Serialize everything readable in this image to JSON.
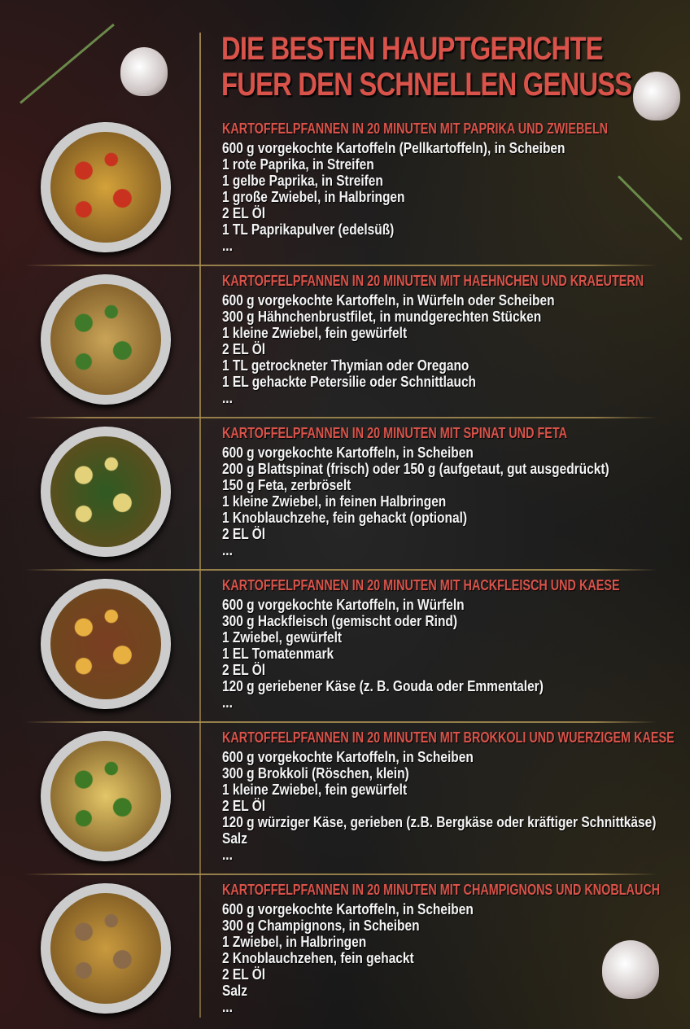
{
  "title_lines": [
    "DIE BESTEN HAUPTGERICHTE",
    "FUER DEN SCHNELLEN GENUSS"
  ],
  "colors": {
    "accent": "#d9534a",
    "divider": "#a88f52",
    "background": "#1b1b1b"
  },
  "recipes": [
    {
      "title": "KARTOFFELPFANNEN IN 20 MINUTEN MIT PAPRIKA UND ZWIEBELN",
      "food_color": "#d4a23a",
      "accent_color": "#c8321e",
      "items": [
        "600 g vorgekochte Kartoffeln (Pellkartoffeln), in Scheiben",
        "1 rote Paprika, in Streifen",
        "1 gelbe Paprika, in Streifen",
        "1 große Zwiebel, in Halbringen",
        "2 EL Öl",
        "1 TL Paprikapulver (edelsüß)",
        "..."
      ]
    },
    {
      "title": "KARTOFFELPFANNEN IN 20 MINUTEN MIT HAEHNCHEN UND KRAEUTERN",
      "food_color": "#c9a457",
      "accent_color": "#3f7a2a",
      "items": [
        "600 g vorgekochte Kartoffeln, in Würfeln oder Scheiben",
        "300 g Hähnchenbrustfilet, in mundgerechten Stücken",
        "1 kleine Zwiebel, fein gewürfelt",
        "2 EL Öl",
        "1 TL getrockneter Thymian oder Oregano",
        "1 EL gehackte Petersilie oder Schnittlauch",
        "..."
      ]
    },
    {
      "title": "KARTOFFELPFANNEN IN 20 MINUTEN MIT SPINAT UND FETA",
      "food_color": "#2f5a22",
      "accent_color": "#e4d27a",
      "items": [
        "600 g vorgekochte Kartoffeln, in Scheiben",
        "200 g Blattspinat (frisch) oder 150 g (aufgetaut, gut ausgedrückt)",
        "150 g Feta, zerbröselt",
        "1 kleine Zwiebel, in feinen Halbringen",
        "1 Knoblauchzehe, fein gehackt (optional)",
        "2 EL Öl",
        "..."
      ]
    },
    {
      "title": "KARTOFFELPFANNEN IN 20 MINUTEN MIT HACKFLEISCH UND KAESE",
      "food_color": "#7a3e22",
      "accent_color": "#e8b040",
      "items": [
        "600 g vorgekochte Kartoffeln, in Würfeln",
        "300 g Hackfleisch (gemischt oder Rind)",
        "1 Zwiebel, gewürfelt",
        "1 EL Tomatenmark",
        "2 EL Öl",
        "120 g geriebener Käse (z. B. Gouda oder Emmentaler)",
        "..."
      ]
    },
    {
      "title": "KARTOFFELPFANNEN IN 20 MINUTEN MIT BROKKOLI UND WUERZIGEM KAESE",
      "food_color": "#e3c667",
      "accent_color": "#3e7a25",
      "items": [
        "600 g vorgekochte Kartoffeln, in Scheiben",
        "300 g Brokkoli (Röschen, klein)",
        "1 kleine Zwiebel, fein gewürfelt",
        "2 EL Öl",
        "120 g würziger Käse, gerieben (z.B. Bergkäse oder kräftiger Schnittkäse)",
        "Salz",
        "..."
      ]
    },
    {
      "title": "KARTOFFELPFANNEN IN 20 MINUTEN MIT CHAMPIGNONS UND KNOBLAUCH",
      "food_color": "#c99a3e",
      "accent_color": "#8a6a48",
      "items": [
        "600 g vorgekochte Kartoffeln, in Scheiben",
        "300 g Champignons, in Scheiben",
        "1 Zwiebel, in Halbringen",
        "2 Knoblauchzehen, fein gehackt",
        "2 EL Öl",
        "Salz",
        "..."
      ]
    }
  ]
}
